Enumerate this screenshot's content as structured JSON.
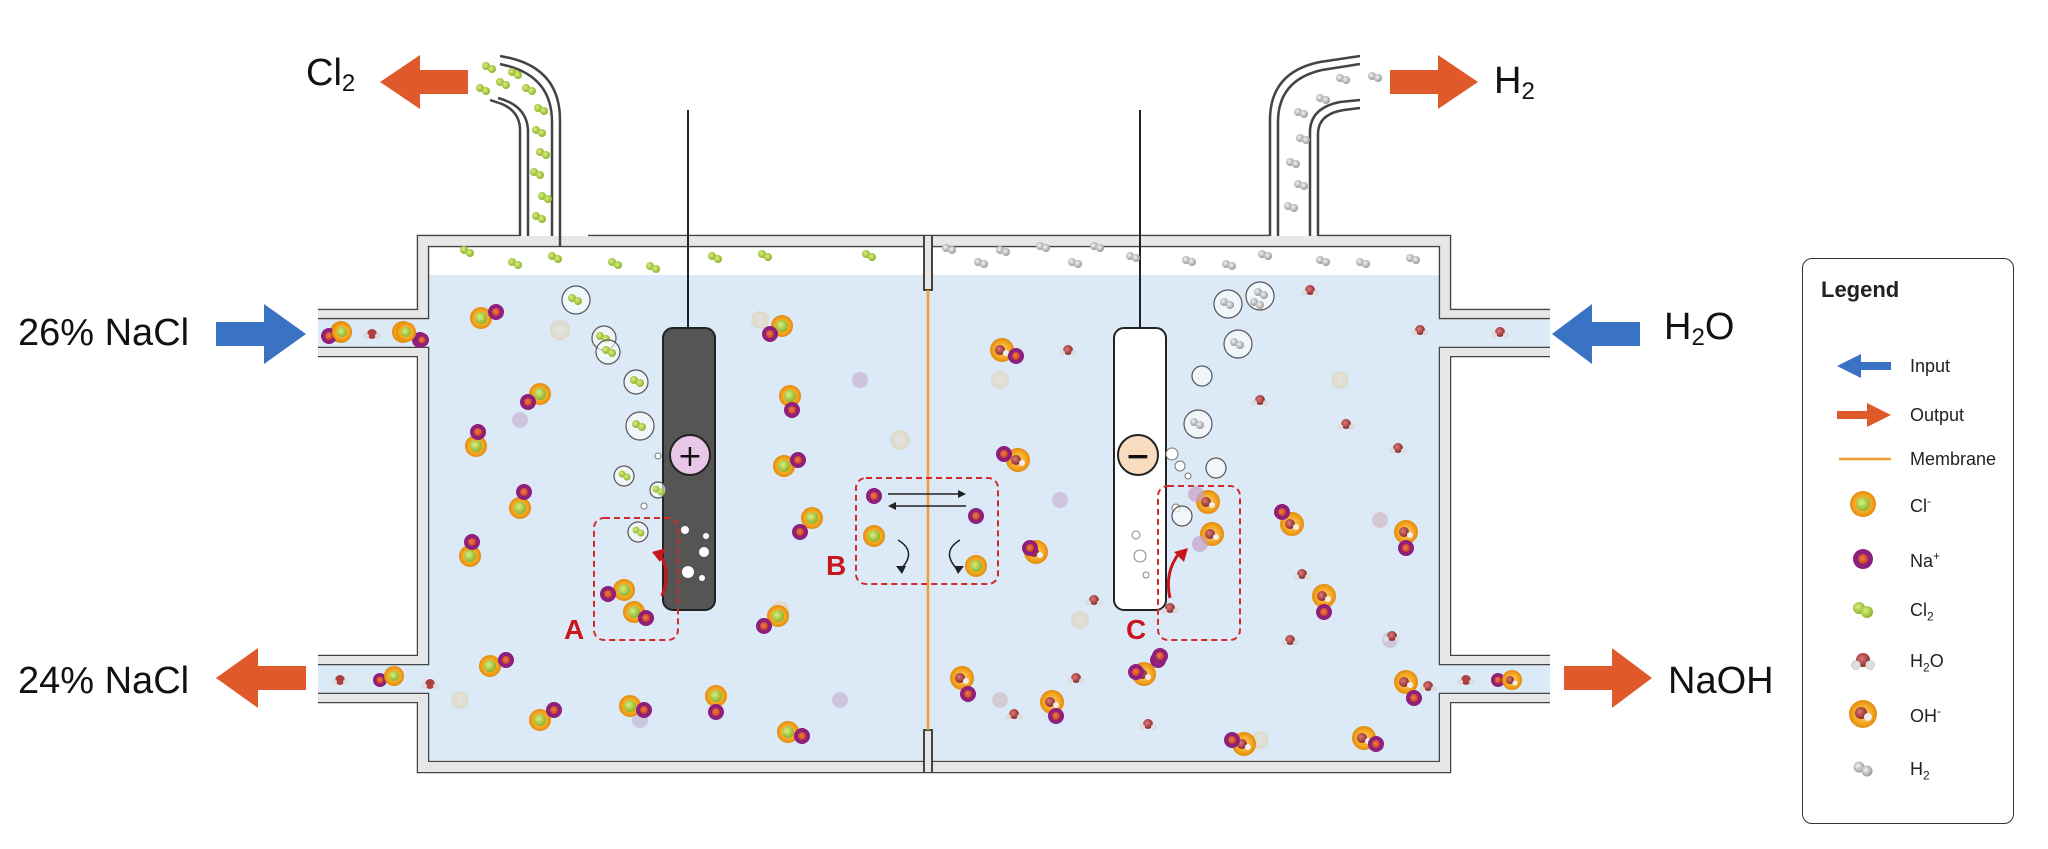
{
  "labels": {
    "cl2_out": {
      "main": "Cl",
      "sub": "2"
    },
    "h2_out": {
      "main": "H",
      "sub": "2"
    },
    "nacl_in": "26% NaCl",
    "nacl_out": "24% NaCl",
    "h2o_in": {
      "main": "H",
      "sub": "2",
      "tail": "O"
    },
    "naoh_out": "NaOH"
  },
  "boxes": {
    "a": "A",
    "b": "B",
    "c": "C"
  },
  "electrodes": {
    "anode": "+",
    "cathode": "−"
  },
  "legend": {
    "title": "Legend",
    "input": "Input",
    "output": "Output",
    "membrane": "Membrane",
    "cl_ion": {
      "main": "Cl",
      "sup": "-"
    },
    "na_ion": {
      "main": "Na",
      "sup": "+"
    },
    "cl2": {
      "main": "Cl",
      "sub": "2"
    },
    "h2o": {
      "main": "H",
      "sub": "2",
      "tail": "O"
    },
    "oh_ion": {
      "main": "OH",
      "sup": "-"
    },
    "h2": {
      "main": "H",
      "sub": "2"
    }
  },
  "colors": {
    "input_arrow": "#3a73c4",
    "output_arrow": "#e0592a",
    "membrane": "#f0a030",
    "electrolyte": "#dce9f6",
    "anode": "#555555",
    "cathode": "#ffffff",
    "anode_sign_fill": "#e8c6e8",
    "cathode_sign_fill": "#f7dcbf",
    "highlight_box": "#d42a2a",
    "cl_ion_ring": "#f4a51c",
    "cl_ion_core": "#a8c93a",
    "na_ion_ring": "#8e1f7c",
    "na_ion_core": "#e05a30",
    "cl2_molecule": "#a8c93a",
    "h2o_oxygen": "#b04040",
    "h2_molecule": "#b8b8b8"
  }
}
